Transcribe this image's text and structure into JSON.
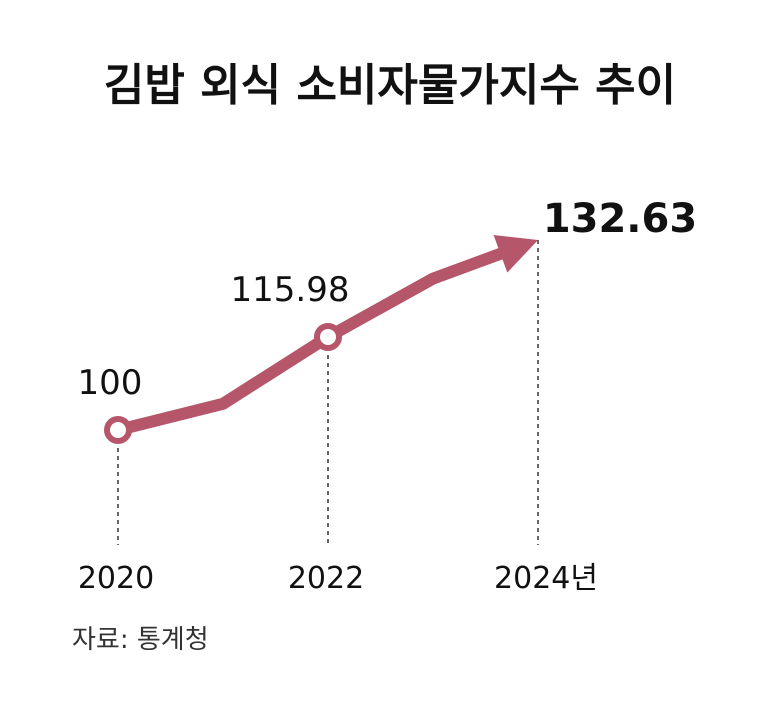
{
  "chart_data": {
    "type": "line",
    "title": "김밥 외식 소비자물가지수 추이",
    "xlabel": "",
    "ylabel": "",
    "x_labels": [
      "2020",
      "2022",
      "2024년"
    ],
    "series": [
      {
        "values": [
          {
            "x": 2020,
            "y": 100
          },
          {
            "x": 2021,
            "y": 104.5
          },
          {
            "x": 2022,
            "y": 115.98
          },
          {
            "x": 2023,
            "y": 126
          },
          {
            "x": 2024,
            "y": 132.63
          }
        ],
        "color": "#b5566a"
      }
    ],
    "data_labels": [
      {
        "x": 2020,
        "text": "100"
      },
      {
        "x": 2022,
        "text": "115.98"
      },
      {
        "x": 2024,
        "text": "132.63"
      }
    ],
    "source": "자료: 통계청",
    "grid": false,
    "legend": "none"
  }
}
